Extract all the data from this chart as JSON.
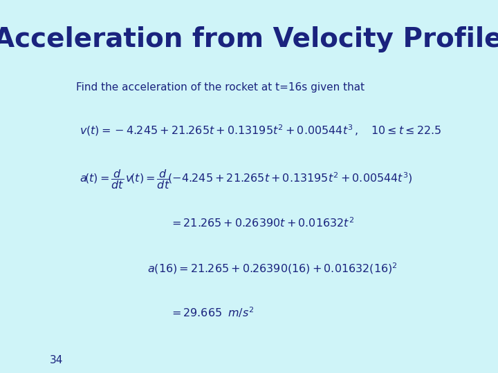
{
  "background_color": "#cff4f8",
  "title": "Acceleration from Velocity Profile",
  "title_color": "#1a237e",
  "title_fontsize": 28,
  "subtitle": "Find the acceleration of the rocket at t=16s given that",
  "subtitle_color": "#1a237e",
  "subtitle_fontsize": 11,
  "math_color": "#1a237e",
  "page_number": "34",
  "eq1": "$v(t) = -4.245 + 21.265t + 0.13195t^2 + 0.00544t^3\\,, \\quad 10 \\leq t \\leq 22.5$",
  "eq2": "$a\\!\\left(t\\right) = \\dfrac{d}{dt}\\,v\\!\\left(t\\right) = \\dfrac{d}{dt}\\!\\left(-4.245 + 21.265t + 0.13195t^2 + 0.00544t^3\\right)$",
  "eq3": "$= 21.265 + 0.26390t + 0.01632t^2$",
  "eq4": "$a(16) = 21.265 + 0.26390(16) + 0.01632(16)^2$",
  "eq5": "$= 29.665 \\;\\; m/s^2$"
}
